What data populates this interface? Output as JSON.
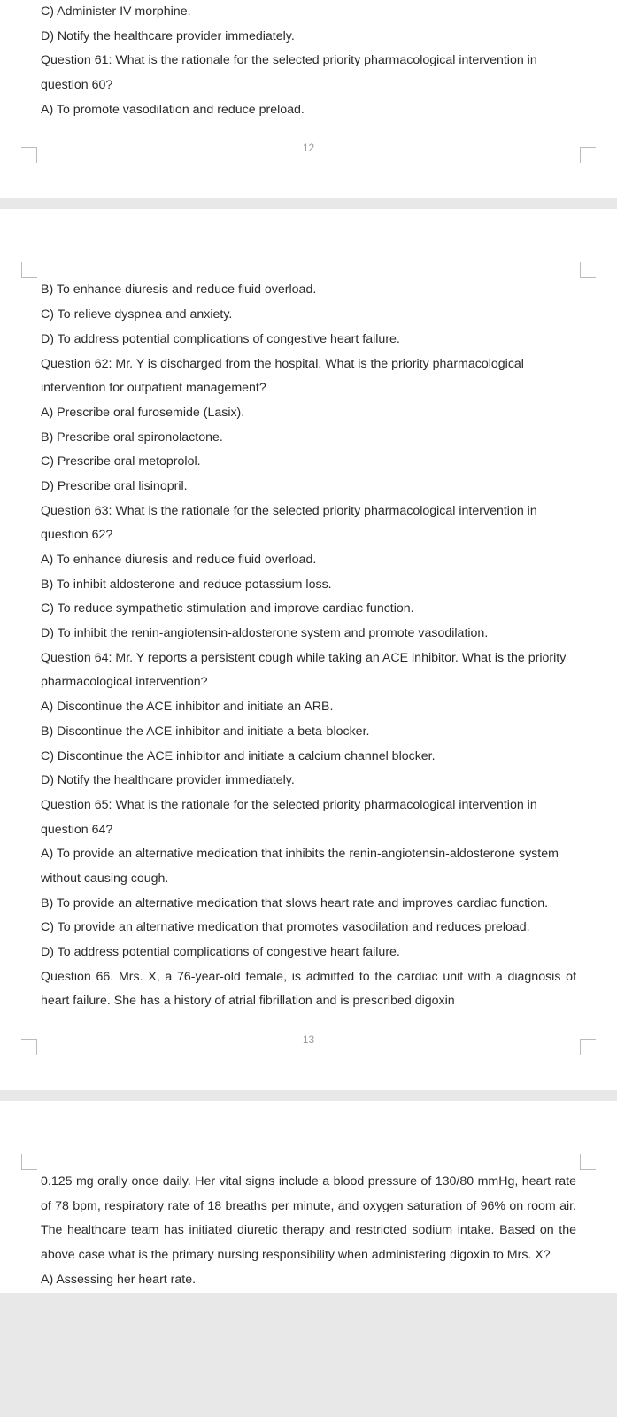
{
  "page12": {
    "number": "12",
    "lines": [
      "C) Administer IV morphine.",
      "D) Notify the healthcare provider immediately.",
      "Question 61: What is the rationale for the selected priority pharmacological intervention in question 60?",
      "A) To promote vasodilation and reduce preload."
    ]
  },
  "page13": {
    "number": "13",
    "lines": [
      "B) To enhance diuresis and reduce fluid overload.",
      "C) To relieve dyspnea and anxiety.",
      "D) To address potential complications of congestive heart failure.",
      "Question 62: Mr. Y is discharged from the hospital. What is the priority pharmacological intervention for outpatient management?",
      "A) Prescribe oral furosemide (Lasix).",
      "B) Prescribe oral spironolactone.",
      "C) Prescribe oral metoprolol.",
      "D) Prescribe oral lisinopril.",
      "Question 63: What is the rationale for the selected priority pharmacological intervention in question 62?",
      "A) To enhance diuresis and reduce fluid overload.",
      "B) To inhibit aldosterone and reduce potassium loss.",
      "C) To reduce sympathetic stimulation and improve cardiac function.",
      "D) To inhibit the renin-angiotensin-aldosterone system and promote vasodilation.",
      "Question 64: Mr. Y reports a persistent cough while taking an ACE inhibitor. What is the priority pharmacological intervention?",
      "A) Discontinue the ACE inhibitor and initiate an ARB.",
      "B) Discontinue the ACE inhibitor and initiate a beta-blocker.",
      "C) Discontinue the ACE inhibitor and initiate a calcium channel blocker.",
      "D) Notify the healthcare provider immediately.",
      "Question 65: What is the rationale for the selected priority pharmacological intervention in question 64?",
      "A) To provide an alternative medication that inhibits the renin-angiotensin-aldosterone system without causing cough.",
      "B) To provide an alternative medication that slows heart rate and improves cardiac function.",
      "C) To provide an alternative medication that promotes vasodilation and reduces preload.",
      "D) To address potential complications of congestive heart failure.",
      "Question 66. Mrs. X, a 76-year-old female, is admitted to the cardiac unit with a diagnosis of heart failure. She has a history of atrial fibrillation and is prescribed digoxin"
    ],
    "justify_last": true
  },
  "page14": {
    "lines": [
      "0.125 mg orally once daily. Her vital signs include a blood pressure of 130/80 mmHg, heart rate of 78 bpm, respiratory rate of 18 breaths per minute, and oxygen saturation of 96% on room air. The healthcare team has initiated diuretic therapy and restricted sodium intake. Based on the above case what is the primary nursing responsibility when administering digoxin to Mrs. X?",
      "A) Assessing her heart rate."
    ],
    "justify_first": true
  }
}
